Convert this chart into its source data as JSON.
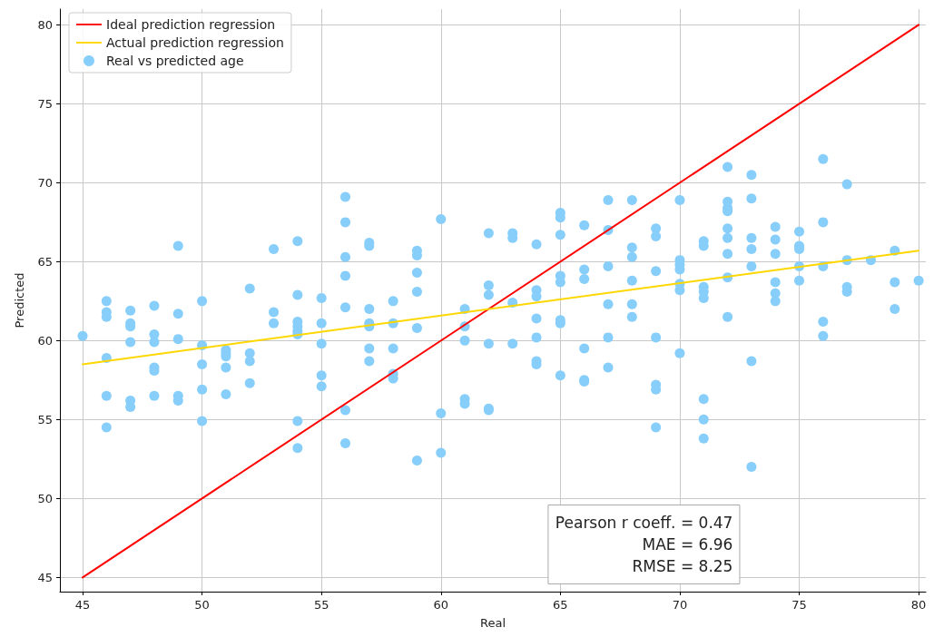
{
  "chart_data": {
    "type": "scatter",
    "xlabel": "Real",
    "ylabel": "Predicted",
    "xlim": [
      44.05,
      80.3
    ],
    "ylim": [
      44.1,
      81
    ],
    "xticks": [
      45,
      50,
      55,
      60,
      65,
      70,
      75,
      80
    ],
    "yticks": [
      45,
      50,
      55,
      60,
      65,
      70,
      75,
      80
    ],
    "grid": true,
    "legend": "top left",
    "annotations": [
      "Pearson r coeff. = 0.47",
      "MAE = 6.96",
      "RMSE = 8.25"
    ],
    "series": [
      {
        "name": "Ideal prediction regression",
        "type": "line",
        "color": "#ff0000",
        "x": [
          45,
          80
        ],
        "values": [
          45,
          80
        ]
      },
      {
        "name": "Actual prediction regression",
        "type": "line",
        "color": "#ffd700",
        "x": [
          45,
          80
        ],
        "values": [
          58.5,
          65.7
        ]
      },
      {
        "name": "Real vs predicted age",
        "marker": "circle",
        "color": "#87cefa",
        "x": [
          45,
          46,
          46,
          46,
          46,
          46,
          46,
          47,
          47,
          47,
          47,
          47,
          47,
          48,
          48,
          48,
          48,
          48,
          48,
          49,
          49,
          49,
          49,
          49,
          50,
          50,
          50,
          50,
          50,
          51,
          51,
          51,
          51,
          51,
          52,
          52,
          52,
          52,
          53,
          53,
          53,
          54,
          54,
          54,
          54,
          54,
          54,
          54,
          54,
          55,
          55,
          55,
          55,
          55,
          56,
          56,
          56,
          56,
          56,
          56,
          56,
          57,
          57,
          57,
          57,
          57,
          57,
          57,
          58,
          58,
          58,
          58,
          58,
          59,
          59,
          59,
          59,
          59,
          59,
          60,
          60,
          60,
          61,
          61,
          61,
          61,
          61,
          62,
          62,
          62,
          62,
          62,
          62,
          63,
          63,
          63,
          63,
          64,
          64,
          64,
          64,
          64,
          64,
          64,
          65,
          65,
          65,
          65,
          65,
          65,
          65,
          65,
          66,
          66,
          66,
          66,
          66,
          66,
          67,
          67,
          67,
          67,
          67,
          67,
          68,
          68,
          68,
          68,
          68,
          68,
          69,
          69,
          69,
          69,
          69,
          69,
          69,
          70,
          70,
          70,
          70,
          70,
          70,
          70,
          71,
          71,
          71,
          71,
          71,
          71,
          71,
          71,
          72,
          72,
          72,
          72,
          72,
          72,
          72,
          72,
          72,
          73,
          73,
          73,
          73,
          73,
          73,
          73,
          74,
          74,
          74,
          74,
          74,
          74,
          75,
          75,
          75,
          75,
          75,
          76,
          76,
          76,
          76,
          76,
          77,
          77,
          77,
          77,
          78,
          79,
          79,
          79,
          80
        ],
        "values": [
          60.3,
          62.5,
          61.8,
          61.5,
          58.9,
          56.5,
          54.5,
          61.9,
          61.1,
          60.9,
          59.9,
          56.2,
          55.8,
          62.2,
          60.4,
          59.9,
          58.3,
          58.1,
          56.5,
          66.0,
          61.7,
          60.1,
          56.5,
          56.2,
          62.5,
          59.7,
          58.5,
          56.9,
          54.9,
          59.4,
          59.2,
          59.0,
          58.3,
          56.6,
          63.3,
          59.2,
          58.7,
          57.3,
          65.8,
          61.8,
          61.1,
          66.3,
          62.9,
          61.2,
          60.9,
          60.6,
          60.4,
          54.9,
          53.2,
          62.7,
          61.1,
          59.8,
          57.8,
          57.1,
          69.1,
          67.5,
          65.3,
          64.1,
          62.1,
          55.6,
          53.5,
          66.2,
          66.0,
          62.0,
          61.1,
          60.9,
          59.5,
          58.7,
          62.5,
          61.1,
          59.5,
          57.9,
          57.6,
          65.7,
          65.4,
          64.3,
          63.1,
          60.8,
          52.4,
          67.7,
          55.4,
          52.9,
          62.0,
          60.9,
          60.0,
          56.3,
          56.0,
          66.8,
          63.5,
          62.9,
          59.8,
          55.7,
          55.6,
          66.8,
          66.5,
          62.4,
          59.8,
          66.1,
          63.2,
          62.8,
          61.4,
          60.2,
          58.7,
          58.5,
          68.1,
          67.8,
          66.7,
          64.1,
          63.7,
          61.3,
          61.1,
          57.8,
          67.3,
          64.5,
          63.9,
          59.5,
          57.5,
          57.4,
          68.9,
          67.0,
          64.7,
          62.3,
          60.2,
          58.3,
          68.9,
          65.9,
          65.3,
          63.8,
          62.3,
          61.5,
          67.1,
          66.6,
          64.4,
          60.2,
          57.2,
          56.9,
          54.5,
          68.9,
          65.1,
          64.8,
          64.5,
          63.6,
          63.2,
          59.2,
          66.3,
          66.0,
          63.4,
          63.1,
          62.7,
          56.3,
          55.0,
          53.8,
          71.0,
          68.8,
          68.4,
          68.2,
          67.1,
          66.5,
          65.5,
          64.0,
          61.5,
          70.5,
          69.0,
          66.5,
          65.8,
          64.7,
          58.7,
          52.0,
          67.2,
          66.4,
          65.5,
          63.7,
          63.0,
          62.5,
          66.9,
          66.0,
          65.8,
          64.7,
          63.8,
          71.5,
          67.5,
          64.7,
          61.2,
          60.3,
          69.9,
          65.1,
          63.4,
          63.1,
          65.1,
          65.7,
          63.7,
          62.0,
          63.8
        ]
      }
    ]
  }
}
